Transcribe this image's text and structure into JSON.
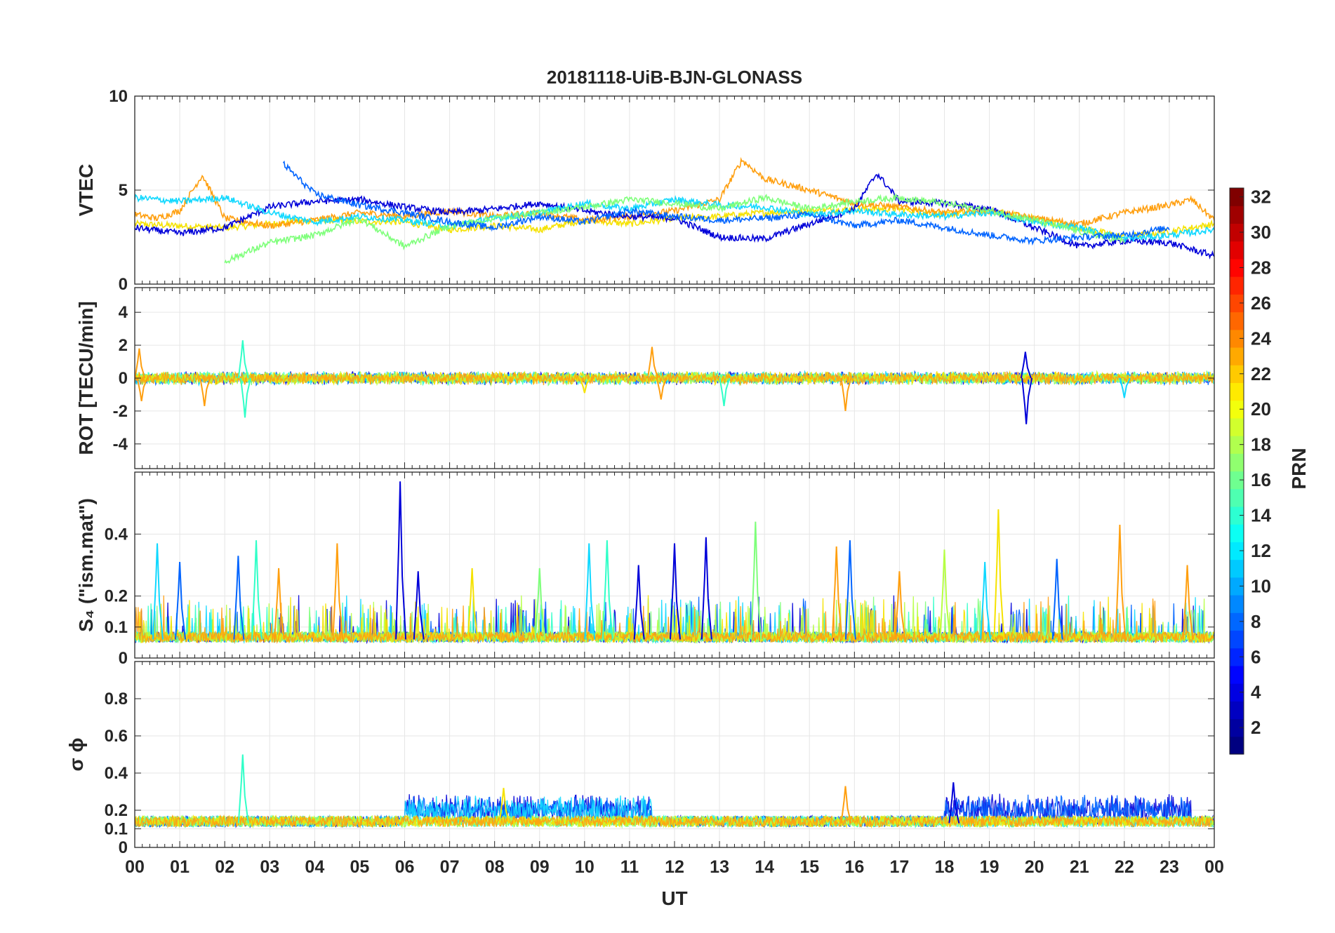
{
  "title": "20181118-UiB-BJN-GLONASS",
  "xlabel": "UT",
  "colorbar": {
    "label": "PRN",
    "ticks": [
      "2",
      "4",
      "6",
      "8",
      "10",
      "12",
      "14",
      "16",
      "18",
      "20",
      "22",
      "24",
      "26",
      "28",
      "30",
      "32"
    ],
    "min": 1,
    "max": 32,
    "colormap": "jet"
  },
  "chart_data": [
    {
      "type": "line",
      "ylabel": "VTEC",
      "ylim": [
        0,
        10
      ],
      "yticks": [
        "0",
        "5",
        "10"
      ],
      "xlim": [
        0,
        24
      ],
      "xticklabels": [],
      "grid": true,
      "series": [
        {
          "prn": 20,
          "color": "#f5e200",
          "x": [
            0,
            2,
            4,
            6,
            7,
            8,
            9,
            10,
            11,
            12,
            13,
            14,
            15,
            16,
            17,
            18,
            19,
            20,
            21,
            22,
            23,
            24
          ],
          "y": [
            3.2,
            3.0,
            3.4,
            3.3,
            2.9,
            3.1,
            2.9,
            3.4,
            3.2,
            3.5,
            3.6,
            3.8,
            3.9,
            4.0,
            4.0,
            3.7,
            3.9,
            3.5,
            3.0,
            2.5,
            2.8,
            3.2
          ]
        },
        {
          "prn": 23,
          "color": "#ff9f0f",
          "x": [
            0,
            0.5,
            1,
            1.5,
            2,
            3,
            4,
            5,
            6,
            7,
            8,
            9,
            10,
            11,
            12,
            13,
            13.5,
            14,
            15,
            16,
            17,
            18,
            19,
            20,
            21,
            22,
            23,
            23.5,
            24
          ],
          "y": [
            3.7,
            3.5,
            3.9,
            5.8,
            3.5,
            3.1,
            3.4,
            3.8,
            3.6,
            3.9,
            3.6,
            3.8,
            3.4,
            3.6,
            3.9,
            4.5,
            6.6,
            5.6,
            5.0,
            4.3,
            4.1,
            3.8,
            3.9,
            3.5,
            3.2,
            3.8,
            4.2,
            4.5,
            3.4
          ]
        },
        {
          "prn": 4,
          "color": "#0000d9",
          "x": [
            0,
            1,
            2,
            3,
            4,
            5,
            6,
            7,
            8,
            9,
            10,
            11,
            12,
            13,
            14,
            15,
            16,
            16.5,
            17,
            18,
            19,
            20,
            21,
            22,
            23,
            24
          ],
          "y": [
            3.0,
            2.7,
            3.0,
            4.1,
            4.4,
            4.5,
            4.1,
            3.8,
            4.0,
            4.3,
            3.9,
            3.6,
            3.5,
            2.5,
            2.4,
            3.2,
            4.0,
            5.9,
            4.4,
            4.3,
            4.0,
            3.0,
            2.0,
            2.3,
            2.2,
            1.5
          ]
        },
        {
          "prn": 12,
          "color": "#10d8ff",
          "x": [
            0,
            1,
            2,
            3,
            4,
            5,
            6,
            7,
            8,
            9,
            10,
            11,
            12,
            13,
            14,
            15,
            16,
            17,
            18,
            19,
            20,
            21,
            22,
            23,
            24
          ],
          "y": [
            4.6,
            4.4,
            4.6,
            3.8,
            3.3,
            3.6,
            3.4,
            3.1,
            3.5,
            3.8,
            4.3,
            4.0,
            4.5,
            4.2,
            4.1,
            3.7,
            3.9,
            3.7,
            3.6,
            3.8,
            3.3,
            3.0,
            2.4,
            2.6,
            2.9
          ]
        },
        {
          "prn": 16,
          "color": "#7eff7a",
          "x": [
            2,
            3,
            4,
            5,
            6,
            7,
            8,
            9,
            10,
            11,
            12,
            13,
            14,
            15,
            16,
            17,
            18,
            19,
            20,
            21,
            22
          ],
          "y": [
            1.2,
            2.2,
            2.6,
            3.5,
            2.0,
            3.1,
            3.5,
            3.8,
            4.1,
            4.5,
            4.3,
            4.0,
            4.6,
            4.0,
            4.4,
            4.6,
            4.3,
            3.9,
            3.4,
            2.8,
            2.3
          ]
        },
        {
          "prn": 9,
          "color": "#0064ff",
          "x": [
            3.3,
            4,
            5,
            6,
            7,
            8,
            9,
            10,
            11,
            12,
            13,
            14,
            15,
            16,
            17,
            18,
            19,
            20,
            21,
            22,
            23
          ],
          "y": [
            6.4,
            4.8,
            4.2,
            3.8,
            3.3,
            3.0,
            3.6,
            3.3,
            3.9,
            3.6,
            3.4,
            3.5,
            3.7,
            3.1,
            3.4,
            3.0,
            2.6,
            2.3,
            2.5,
            2.6,
            3.0
          ]
        }
      ]
    },
    {
      "type": "line",
      "ylabel": "ROT [TECU/min]",
      "ylim": [
        -5.5,
        5.5
      ],
      "yticks": [
        "-4",
        "-2",
        "0",
        "2",
        "4"
      ],
      "xlim": [
        0,
        24
      ],
      "xticklabels": [],
      "grid": true,
      "spikes": [
        {
          "x": 0.1,
          "y": 1.8,
          "color": "#ff9f0f"
        },
        {
          "x": 0.15,
          "y": -1.4,
          "color": "#ff9f0f"
        },
        {
          "x": 1.55,
          "y": -1.7,
          "color": "#ff9f0f"
        },
        {
          "x": 2.4,
          "y": 2.3,
          "color": "#30ffc8"
        },
        {
          "x": 2.45,
          "y": -2.4,
          "color": "#30ffc8"
        },
        {
          "x": 10.0,
          "y": -0.9,
          "color": "#f5e200"
        },
        {
          "x": 11.5,
          "y": 1.9,
          "color": "#ff9f0f"
        },
        {
          "x": 11.7,
          "y": -1.3,
          "color": "#ff9f0f"
        },
        {
          "x": 13.1,
          "y": -1.7,
          "color": "#30ffc8"
        },
        {
          "x": 15.8,
          "y": -2.0,
          "color": "#ff9f0f"
        },
        {
          "x": 19.8,
          "y": 1.6,
          "color": "#0000d9"
        },
        {
          "x": 19.82,
          "y": -2.8,
          "color": "#0000d9"
        },
        {
          "x": 22.0,
          "y": -1.2,
          "color": "#10d8ff"
        }
      ]
    },
    {
      "type": "line",
      "ylabel": "S₄ (\"ism.mat\")",
      "ylim": [
        0,
        0.6
      ],
      "yticks": [
        "0",
        "0.1",
        "0.2",
        "0.4"
      ],
      "xlim": [
        0,
        24
      ],
      "xticklabels": [],
      "grid": true,
      "peaks": [
        {
          "x": 0.5,
          "y": 0.37,
          "color": "#10d8ff"
        },
        {
          "x": 1.0,
          "y": 0.31,
          "color": "#0064ff"
        },
        {
          "x": 2.3,
          "y": 0.33,
          "color": "#0064ff"
        },
        {
          "x": 2.7,
          "y": 0.38,
          "color": "#30ffc8"
        },
        {
          "x": 3.2,
          "y": 0.29,
          "color": "#ff9f0f"
        },
        {
          "x": 4.5,
          "y": 0.37,
          "color": "#ff9f0f"
        },
        {
          "x": 5.9,
          "y": 0.57,
          "color": "#0000d9"
        },
        {
          "x": 6.3,
          "y": 0.28,
          "color": "#0000d9"
        },
        {
          "x": 7.5,
          "y": 0.29,
          "color": "#f5e200"
        },
        {
          "x": 9.0,
          "y": 0.29,
          "color": "#7eff7a"
        },
        {
          "x": 10.1,
          "y": 0.37,
          "color": "#10d8ff"
        },
        {
          "x": 10.5,
          "y": 0.38,
          "color": "#30ffc8"
        },
        {
          "x": 11.2,
          "y": 0.3,
          "color": "#0000d9"
        },
        {
          "x": 12.0,
          "y": 0.37,
          "color": "#0000d9"
        },
        {
          "x": 12.7,
          "y": 0.39,
          "color": "#0000d9"
        },
        {
          "x": 13.8,
          "y": 0.44,
          "color": "#7eff7a"
        },
        {
          "x": 15.6,
          "y": 0.36,
          "color": "#ff9f0f"
        },
        {
          "x": 15.9,
          "y": 0.38,
          "color": "#0064ff"
        },
        {
          "x": 17.0,
          "y": 0.28,
          "color": "#ff9f0f"
        },
        {
          "x": 18.0,
          "y": 0.35,
          "color": "#b6ff44"
        },
        {
          "x": 18.9,
          "y": 0.31,
          "color": "#10d8ff"
        },
        {
          "x": 19.2,
          "y": 0.48,
          "color": "#f5e200"
        },
        {
          "x": 20.5,
          "y": 0.32,
          "color": "#0064ff"
        },
        {
          "x": 21.9,
          "y": 0.43,
          "color": "#ff9f0f"
        },
        {
          "x": 23.4,
          "y": 0.3,
          "color": "#ff9f0f"
        }
      ]
    },
    {
      "type": "line",
      "ylabel": "σ ϕ",
      "ylim": [
        0,
        1
      ],
      "yticks": [
        "0",
        "0.1",
        "0.2",
        "0.4",
        "0.6",
        "0.8"
      ],
      "xlim": [
        0,
        24
      ],
      "xticklabels": [
        "00",
        "01",
        "02",
        "03",
        "04",
        "05",
        "06",
        "07",
        "08",
        "09",
        "10",
        "11",
        "12",
        "13",
        "14",
        "15",
        "16",
        "17",
        "18",
        "19",
        "20",
        "21",
        "22",
        "23",
        "00"
      ],
      "grid": true,
      "peaks": [
        {
          "x": 2.4,
          "y": 0.5,
          "color": "#30ffc8"
        },
        {
          "x": 15.8,
          "y": 0.33,
          "color": "#ff9f0f"
        },
        {
          "x": 18.2,
          "y": 0.35,
          "color": "#0000d9"
        },
        {
          "x": 8.2,
          "y": 0.32,
          "color": "#f5e200"
        }
      ]
    }
  ]
}
